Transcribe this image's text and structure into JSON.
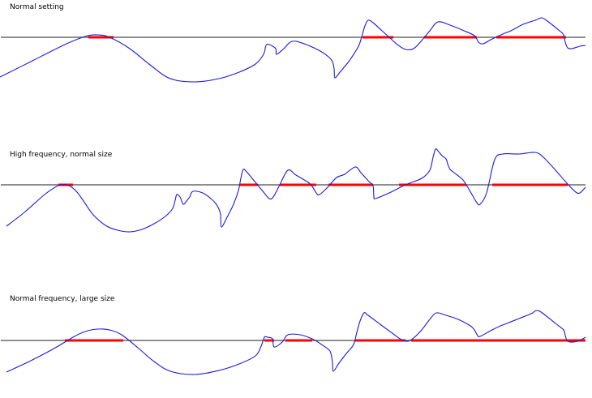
{
  "colors": {
    "background": "#ffffff",
    "baseline": "#4a4a4a",
    "signal": "#1a1adc",
    "highlight": "#ff0000"
  },
  "panels": [
    {
      "title": "Normal setting",
      "signal_points": [
        [
          0,
          95
        ],
        [
          40,
          75
        ],
        [
          80,
          55
        ],
        [
          105,
          45
        ],
        [
          120,
          43
        ],
        [
          135,
          46
        ],
        [
          160,
          60
        ],
        [
          185,
          80
        ],
        [
          210,
          97
        ],
        [
          240,
          101
        ],
        [
          270,
          97
        ],
        [
          295,
          89
        ],
        [
          315,
          79
        ],
        [
          325,
          67
        ],
        [
          328,
          56
        ],
        [
          332,
          55
        ],
        [
          340,
          60
        ],
        [
          341,
          67
        ],
        [
          350,
          60
        ],
        [
          360,
          51
        ],
        [
          375,
          54
        ],
        [
          395,
          63
        ],
        [
          405,
          70
        ],
        [
          410,
          76
        ],
        [
          412,
          85
        ],
        [
          413,
          96
        ],
        [
          420,
          88
        ],
        [
          430,
          76
        ],
        [
          438,
          64
        ],
        [
          443,
          55
        ],
        [
          447,
          42
        ],
        [
          450,
          32
        ],
        [
          454,
          25
        ],
        [
          460,
          28
        ],
        [
          470,
          37
        ],
        [
          480,
          46
        ],
        [
          490,
          55
        ],
        [
          500,
          61
        ],
        [
          510,
          60
        ],
        [
          520,
          50
        ],
        [
          530,
          38
        ],
        [
          540,
          27
        ],
        [
          555,
          31
        ],
        [
          570,
          37
        ],
        [
          585,
          44
        ],
        [
          590,
          52
        ],
        [
          596,
          54
        ],
        [
          605,
          49
        ],
        [
          620,
          42
        ],
        [
          630,
          38
        ],
        [
          645,
          30
        ],
        [
          660,
          25
        ],
        [
          668,
          22
        ],
        [
          675,
          26
        ],
        [
          690,
          38
        ],
        [
          695,
          43
        ],
        [
          697,
          52
        ],
        [
          700,
          59
        ],
        [
          705,
          60
        ],
        [
          715,
          57
        ],
        [
          722,
          56
        ]
      ],
      "highlight_segments": [
        [
          109,
          140
        ],
        [
          447,
          485
        ],
        [
          523,
          588
        ],
        [
          612,
          698
        ]
      ]
    },
    {
      "title": "High frequency, normal size",
      "signal_points": [
        [
          8,
          97
        ],
        [
          30,
          80
        ],
        [
          55,
          58
        ],
        [
          68,
          49
        ],
        [
          75,
          46
        ],
        [
          85,
          47
        ],
        [
          95,
          55
        ],
        [
          105,
          69
        ],
        [
          115,
          83
        ],
        [
          130,
          96
        ],
        [
          145,
          102
        ],
        [
          160,
          104
        ],
        [
          175,
          101
        ],
        [
          190,
          94
        ],
        [
          205,
          84
        ],
        [
          213,
          75
        ],
        [
          216,
          65
        ],
        [
          218,
          58
        ],
        [
          222,
          61
        ],
        [
          226,
          70
        ],
        [
          230,
          66
        ],
        [
          234,
          61
        ],
        [
          238,
          54
        ],
        [
          250,
          56
        ],
        [
          260,
          63
        ],
        [
          266,
          69
        ],
        [
          270,
          76
        ],
        [
          272,
          83
        ],
        [
          273,
          98
        ],
        [
          280,
          86
        ],
        [
          288,
          70
        ],
        [
          294,
          53
        ],
        [
          297,
          38
        ],
        [
          300,
          27
        ],
        [
          305,
          31
        ],
        [
          315,
          43
        ],
        [
          325,
          55
        ],
        [
          332,
          63
        ],
        [
          337,
          61
        ],
        [
          345,
          46
        ],
        [
          355,
          28
        ],
        [
          365,
          34
        ],
        [
          380,
          43
        ],
        [
          385,
          48
        ],
        [
          390,
          56
        ],
        [
          394,
          58
        ],
        [
          405,
          48
        ],
        [
          415,
          37
        ],
        [
          425,
          33
        ],
        [
          438,
          24
        ],
        [
          445,
          31
        ],
        [
          455,
          42
        ],
        [
          460,
          47
        ],
        [
          461,
          60
        ],
        [
          463,
          63
        ],
        [
          480,
          56
        ],
        [
          500,
          46
        ],
        [
          520,
          38
        ],
        [
          530,
          28
        ],
        [
          534,
          12
        ],
        [
          537,
          2
        ],
        [
          540,
          4
        ],
        [
          545,
          10
        ],
        [
          550,
          14
        ],
        [
          552,
          20
        ],
        [
          555,
          27
        ],
        [
          560,
          31
        ],
        [
          570,
          39
        ],
        [
          575,
          46
        ],
        [
          582,
          58
        ],
        [
          588,
          68
        ],
        [
          592,
          70
        ],
        [
          600,
          56
        ],
        [
          610,
          15
        ],
        [
          620,
          8
        ],
        [
          640,
          8
        ],
        [
          660,
          6
        ],
        [
          670,
          12
        ],
        [
          685,
          28
        ],
        [
          700,
          45
        ],
        [
          710,
          55
        ],
        [
          715,
          56
        ],
        [
          722,
          49
        ]
      ],
      "highlight_segments": [
        [
          72,
          90
        ],
        [
          296,
          318
        ],
        [
          345,
          390
        ],
        [
          405,
          460
        ],
        [
          492,
          575
        ],
        [
          607,
          700
        ]
      ]
    },
    {
      "title": "Normal frequency, large size",
      "signal_points": [
        [
          8,
          98
        ],
        [
          40,
          83
        ],
        [
          70,
          67
        ],
        [
          90,
          55
        ],
        [
          105,
          48
        ],
        [
          120,
          45
        ],
        [
          135,
          46
        ],
        [
          150,
          52
        ],
        [
          170,
          68
        ],
        [
          190,
          85
        ],
        [
          210,
          97
        ],
        [
          240,
          101
        ],
        [
          270,
          96
        ],
        [
          295,
          88
        ],
        [
          315,
          78
        ],
        [
          322,
          66
        ],
        [
          326,
          55
        ],
        [
          330,
          55
        ],
        [
          336,
          57
        ],
        [
          338,
          67
        ],
        [
          348,
          61
        ],
        [
          355,
          52
        ],
        [
          370,
          52
        ],
        [
          385,
          57
        ],
        [
          395,
          63
        ],
        [
          405,
          70
        ],
        [
          408,
          75
        ],
        [
          410,
          86
        ],
        [
          411,
          97
        ],
        [
          418,
          87
        ],
        [
          428,
          74
        ],
        [
          436,
          64
        ],
        [
          440,
          49
        ],
        [
          444,
          35
        ],
        [
          449,
          25
        ],
        [
          454,
          28
        ],
        [
          470,
          40
        ],
        [
          485,
          51
        ],
        [
          495,
          58
        ],
        [
          503,
          60
        ],
        [
          510,
          56
        ],
        [
          520,
          46
        ],
        [
          530,
          33
        ],
        [
          538,
          25
        ],
        [
          550,
          28
        ],
        [
          565,
          33
        ],
        [
          580,
          41
        ],
        [
          585,
          46
        ],
        [
          589,
          53
        ],
        [
          592,
          54
        ],
        [
          605,
          47
        ],
        [
          615,
          42
        ],
        [
          625,
          38
        ],
        [
          640,
          32
        ],
        [
          655,
          26
        ],
        [
          662,
          22
        ],
        [
          670,
          26
        ],
        [
          685,
          38
        ],
        [
          695,
          46
        ],
        [
          697,
          53
        ],
        [
          700,
          60
        ],
        [
          707,
          61
        ],
        [
          715,
          59
        ],
        [
          722,
          55
        ]
      ],
      "highlight_segments": [
        [
          80,
          152
        ],
        [
          326,
          338
        ],
        [
          352,
          385
        ],
        [
          438,
          500
        ],
        [
          507,
          722
        ]
      ]
    }
  ]
}
